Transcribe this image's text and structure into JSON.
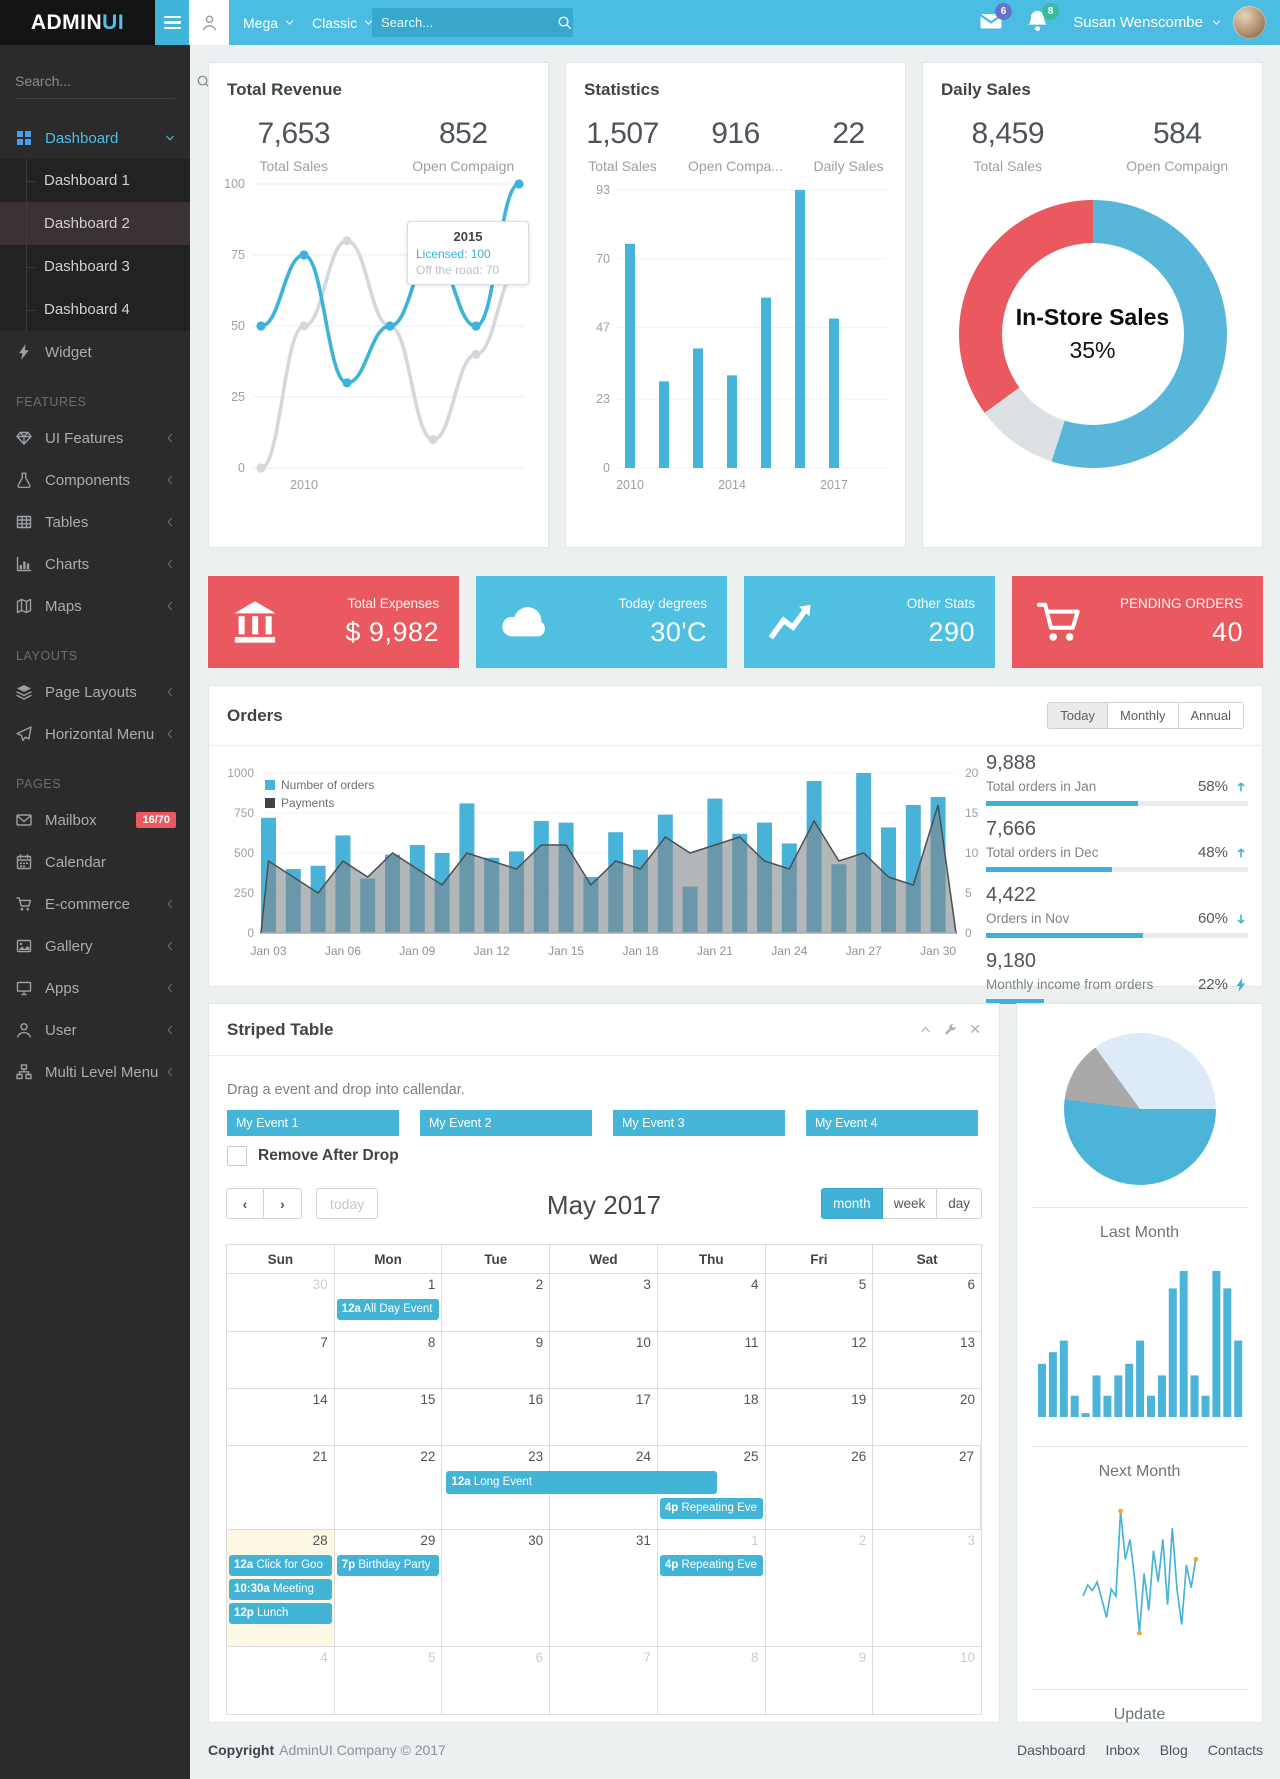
{
  "navbar": {
    "brand_bold": "ADMIN",
    "brand_accent": "UI",
    "mega_label": "Mega",
    "classic_label": "Classic",
    "search_placeholder": "Search...",
    "mail_badge": "6",
    "bell_badge": "8",
    "user_name": "Susan Wenscombe",
    "accent_color": "#4cbde2",
    "mail_badge_color": "#6673c8",
    "bell_badge_color": "#38bc9c"
  },
  "sidebar": {
    "search_placeholder": "Search...",
    "items": [
      {
        "type": "link",
        "icon": "dashboard-icon",
        "label": "Dashboard",
        "active": true,
        "caret": "down"
      },
      {
        "type": "sub",
        "label": "Dashboard 1"
      },
      {
        "type": "sub",
        "label": "Dashboard 2",
        "active": true
      },
      {
        "type": "sub",
        "label": "Dashboard 3"
      },
      {
        "type": "sub",
        "label": "Dashboard 4"
      },
      {
        "type": "link",
        "icon": "bolt-icon",
        "label": "Widget"
      },
      {
        "type": "header",
        "label": "FEATURES"
      },
      {
        "type": "link",
        "icon": "gem-icon",
        "label": "UI Features",
        "caret": "left"
      },
      {
        "type": "link",
        "icon": "flask-icon",
        "label": "Components",
        "caret": "left"
      },
      {
        "type": "link",
        "icon": "table-icon",
        "label": "Tables",
        "caret": "left"
      },
      {
        "type": "link",
        "icon": "charts-icon",
        "label": "Charts",
        "caret": "left"
      },
      {
        "type": "link",
        "icon": "map-icon",
        "label": "Maps",
        "caret": "left"
      },
      {
        "type": "header",
        "label": "LAYOUTS"
      },
      {
        "type": "link",
        "icon": "layers-icon",
        "label": "Page Layouts",
        "caret": "left"
      },
      {
        "type": "link",
        "icon": "plane-icon",
        "label": "Horizontal Menu",
        "caret": "left"
      },
      {
        "type": "header",
        "label": "PAGES"
      },
      {
        "type": "link",
        "icon": "envelope-icon",
        "label": "Mailbox",
        "badge": "16/70"
      },
      {
        "type": "link",
        "icon": "calendar-icon",
        "label": "Calendar"
      },
      {
        "type": "link",
        "icon": "cart-icon",
        "label": "E-commerce",
        "caret": "left"
      },
      {
        "type": "link",
        "icon": "gallery-icon",
        "label": "Gallery",
        "caret": "left"
      },
      {
        "type": "link",
        "icon": "apps-icon",
        "label": "Apps",
        "caret": "left"
      },
      {
        "type": "link",
        "icon": "user-icon",
        "label": "User",
        "caret": "left"
      },
      {
        "type": "link",
        "icon": "sitemap-icon",
        "label": "Multi Level Menu",
        "caret": "left"
      }
    ]
  },
  "cards": {
    "total_revenue": {
      "title": "Total Revenue",
      "stat1": "7,653",
      "stat1_label": "Total Sales",
      "stat2": "852",
      "stat2_label": "Open Compaign"
    },
    "statistics": {
      "title": "Statistics",
      "stat1": "1,507",
      "stat1_label": "Total Sales",
      "stat2": "916",
      "stat2_label": "Open Compa...",
      "stat3": "22",
      "stat3_label": "Daily Sales"
    },
    "daily_sales": {
      "title": "Daily Sales",
      "stat1": "8,459",
      "stat1_label": "Total Sales",
      "stat2": "584",
      "stat2_label": "Open Compaign",
      "center_title": "In-Store Sales",
      "center_value": "35%"
    }
  },
  "tiles": [
    {
      "label": "Total Expenses",
      "value": "$ 9,982",
      "color": "#e9595f",
      "icon": "bank-icon"
    },
    {
      "label": "Today degrees",
      "value": "30'C",
      "color": "#4fc0e0",
      "icon": "cloud-icon"
    },
    {
      "label": "Other Stats",
      "value": "290",
      "color": "#4fc0e0",
      "icon": "stats-icon"
    },
    {
      "label": "PENDING ORDERS",
      "value": "40",
      "color": "#e9595f",
      "icon": "cart-icon"
    }
  ],
  "orders": {
    "title": "Orders",
    "buttons": [
      "Today",
      "Monthly",
      "Annual"
    ],
    "active_button": "Today",
    "stats": [
      {
        "value": "9,888",
        "label": "Total orders in Jan",
        "pct": "58%",
        "pct_num": 58,
        "icon": "arrow-up-icon"
      },
      {
        "value": "7,666",
        "label": "Total orders in Dec",
        "pct": "48%",
        "pct_num": 48,
        "icon": "arrow-up-icon"
      },
      {
        "value": "4,422",
        "label": "Orders in Nov",
        "pct": "60%",
        "pct_num": 60,
        "icon": "arrow-down-icon"
      },
      {
        "value": "9,180",
        "label": "Monthly income from orders",
        "pct": "22%",
        "pct_num": 22,
        "icon": "bolt-icon"
      }
    ]
  },
  "striped": {
    "title": "Striped Table",
    "hint": "Drag a event and drop into callendar.",
    "events": [
      "My Event 1",
      "My Event 2",
      "My Event 3",
      "My Event 4"
    ],
    "checkbox_label": "Remove After Drop"
  },
  "calendar": {
    "title": "May 2017",
    "today_label": "today",
    "views": [
      "month",
      "week",
      "day"
    ],
    "active_view": "month",
    "weekdays": [
      "Sun",
      "Mon",
      "Tue",
      "Wed",
      "Thu",
      "Fri",
      "Sat"
    ],
    "weeks": [
      [
        {
          "d": "30",
          "muted": true
        },
        {
          "d": "1",
          "events": [
            {
              "time": "12a",
              "text": "All Day Event"
            }
          ]
        },
        {
          "d": "2"
        },
        {
          "d": "3"
        },
        {
          "d": "4"
        },
        {
          "d": "5"
        },
        {
          "d": "6"
        }
      ],
      [
        {
          "d": "7"
        },
        {
          "d": "8"
        },
        {
          "d": "9"
        },
        {
          "d": "10"
        },
        {
          "d": "11"
        },
        {
          "d": "12"
        },
        {
          "d": "13"
        }
      ],
      [
        {
          "d": "14"
        },
        {
          "d": "15"
        },
        {
          "d": "16"
        },
        {
          "d": "17"
        },
        {
          "d": "18"
        },
        {
          "d": "19"
        },
        {
          "d": "20"
        }
      ],
      [
        {
          "d": "21"
        },
        {
          "d": "22"
        },
        {
          "d": "23"
        },
        {
          "d": "24"
        },
        {
          "d": "25",
          "push": true,
          "events": [
            {
              "time": "4p",
              "text": "Repeating Eve"
            }
          ]
        },
        {
          "d": "26"
        },
        {
          "d": "27"
        }
      ],
      [
        {
          "d": "28",
          "today": true,
          "events": [
            {
              "time": "12a",
              "text": "Click for Goo"
            },
            {
              "time": "10:30a",
              "text": "Meeting"
            },
            {
              "time": "12p",
              "text": "Lunch"
            }
          ]
        },
        {
          "d": "29",
          "events": [
            {
              "time": "7p",
              "text": "Birthday Party"
            }
          ]
        },
        {
          "d": "30"
        },
        {
          "d": "31"
        },
        {
          "d": "1",
          "muted": true,
          "events": [
            {
              "time": "4p",
              "text": "Repeating Eve"
            }
          ]
        },
        {
          "d": "2",
          "muted": true
        },
        {
          "d": "3",
          "muted": true
        }
      ],
      [
        {
          "d": "4",
          "muted": true
        },
        {
          "d": "5",
          "muted": true
        },
        {
          "d": "6",
          "muted": true
        },
        {
          "d": "7",
          "muted": true
        },
        {
          "d": "8",
          "muted": true
        },
        {
          "d": "9",
          "muted": true
        },
        {
          "d": "10",
          "muted": true
        }
      ]
    ],
    "long_event": {
      "week": 3,
      "start_col": 2,
      "span_cols": 2.56,
      "time": "12a",
      "text": "Long Event"
    }
  },
  "mini_cards": {
    "last_month": "Last Month",
    "next_month": "Next Month",
    "update": "Update"
  },
  "footer": {
    "copyright_bold": "Copyright",
    "copyright_rest": "AdminUI Company © 2017",
    "links": [
      "Dashboard",
      "Inbox",
      "Blog",
      "Contacts"
    ]
  },
  "chart_data": {
    "revenue": {
      "type": "line",
      "title": "Total Revenue",
      "x": [
        "2009",
        "2010",
        "2011",
        "2012",
        "2013",
        "2014",
        "2015"
      ],
      "x_tick_labels_shown": [
        {
          "index": 1,
          "label": "2010"
        }
      ],
      "ylim": [
        0,
        100
      ],
      "yticks": [
        0,
        25,
        50,
        75,
        100
      ],
      "series": [
        {
          "name": "Licensed",
          "color": "#3db2da",
          "values": [
            50,
            75,
            30,
            50,
            75,
            50,
            100
          ]
        },
        {
          "name": "Off the road",
          "color": "#d4d8dc",
          "values": [
            0,
            50,
            80,
            50,
            10,
            40,
            70
          ]
        }
      ],
      "tooltip": {
        "year": "2015",
        "line1": "Licensed: 100",
        "line2": "Off the road: 70"
      }
    },
    "statistics": {
      "type": "bar",
      "title": "Statistics",
      "color": "#46b4d9",
      "values": [
        75,
        29,
        40,
        31,
        57,
        93,
        50
      ],
      "tick_labels": [
        "2010",
        "",
        "",
        "2014",
        "",
        "",
        "2017"
      ],
      "ylim": [
        0,
        93
      ],
      "yticks": [
        0,
        23,
        47,
        70,
        93
      ]
    },
    "daily_donut": {
      "type": "pie",
      "donut": true,
      "center_title": "In-Store Sales",
      "center_value": "35%",
      "slices": [
        {
          "value": 55,
          "color": "#58b7d8"
        },
        {
          "value": 10,
          "color": "#dde1e6"
        },
        {
          "value": 35,
          "color": "#e9595f"
        }
      ]
    },
    "orders": {
      "type": "bar+area",
      "x_tick_labels": [
        "Jan 03",
        "Jan 06",
        "Jan 09",
        "Jan 12",
        "Jan 15",
        "Jan 18",
        "Jan 21",
        "Jan 24",
        "Jan 27",
        "Jan 30"
      ],
      "bars": {
        "name": "Number of orders",
        "color": "#48b2d8",
        "ylim": [
          0,
          1000
        ],
        "yticks": [
          0,
          250,
          500,
          750,
          1000
        ],
        "values": [
          720,
          400,
          420,
          610,
          340,
          490,
          550,
          500,
          810,
          470,
          510,
          700,
          690,
          350,
          630,
          520,
          740,
          290,
          840,
          620,
          690,
          560,
          950,
          430,
          1000,
          660,
          800,
          850
        ]
      },
      "area": {
        "name": "Payments",
        "color": "#83888d",
        "stroke": "#4a4f54",
        "ylim": [
          0,
          20
        ],
        "yticks": [
          0,
          5,
          10,
          15,
          20
        ],
        "values": [
          9,
          7,
          5,
          9,
          7,
          10,
          8,
          6,
          10,
          9,
          8,
          11,
          11,
          6,
          9,
          8,
          12,
          10,
          11,
          12,
          9,
          8,
          14,
          9,
          10,
          7,
          6,
          16
        ]
      }
    },
    "last_month_pie": {
      "type": "pie",
      "label": "Last Month",
      "start_deg": 90,
      "slices": [
        {
          "value": 52,
          "color": "#4cb4d8"
        },
        {
          "value": 13,
          "color": "#a9a9a9"
        },
        {
          "value": 35,
          "color": "#ddeaf8"
        }
      ]
    },
    "next_month_bars": {
      "type": "bar",
      "label": "Next Month",
      "color": "#4cb4d8",
      "ylim": [
        0,
        100
      ],
      "values": [
        36,
        44,
        52,
        14,
        2,
        28,
        14,
        28,
        36,
        52,
        14,
        28,
        88,
        100,
        28,
        14,
        100,
        88,
        52
      ]
    },
    "update_line": {
      "type": "line",
      "label": "Update",
      "color": "#49b3d8",
      "dot_color": "#f4a62a",
      "ylim": [
        0,
        100
      ],
      "values": [
        40,
        48,
        44,
        50,
        38,
        25,
        45,
        40,
        100,
        66,
        80,
        52,
        14,
        56,
        30,
        72,
        50,
        80,
        34,
        88,
        45,
        20,
        62,
        46,
        66
      ]
    }
  }
}
